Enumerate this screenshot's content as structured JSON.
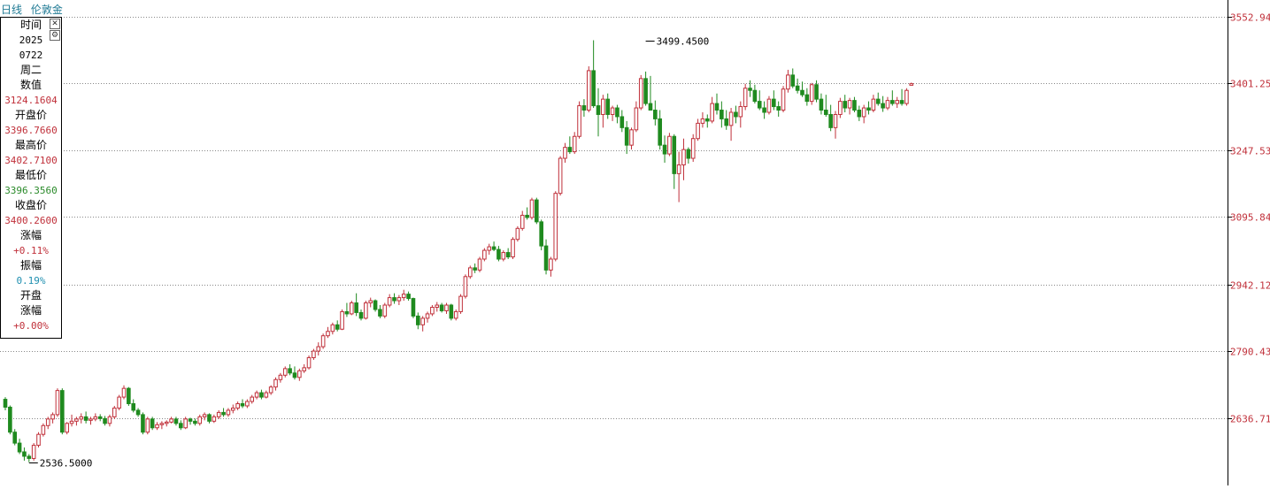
{
  "header": {
    "period": "日线",
    "instrument": "伦敦金"
  },
  "info_panel": {
    "time_label": "时间",
    "year": "2025",
    "date": "0722",
    "weekday": "周二",
    "value_label": "数值",
    "value": "3124.1604",
    "open_label": "开盘价",
    "open": "3396.7660",
    "high_label": "最高价",
    "high": "3402.7100",
    "low_label": "最低价",
    "low": "3396.3560",
    "close_label": "收盘价",
    "close": "3400.2600",
    "change_label": "涨幅",
    "change": "+0.11%",
    "amplitude_label": "振幅",
    "amplitude": "0.19%",
    "open_change_label_1": "开盘",
    "open_change_label_2": "涨幅",
    "open_change": "+0.00%",
    "close_icon": "close-icon",
    "settings_icon": "gear-icon"
  },
  "colors": {
    "up": "#c0303a",
    "down": "#1f8a1f",
    "axis_text": "#c0303a",
    "grid": "#888888",
    "title": "#1f7a94"
  },
  "chart_data": {
    "type": "candlestick",
    "y_ticks": [
      "3552.947",
      "3401.253",
      "3247.537",
      "3095.844",
      "2942.128",
      "2790.434",
      "2636.718"
    ],
    "ylim": [
      2470,
      3580
    ],
    "grid": "horizontal dotted",
    "annotations": [
      {
        "label": "3499.4500",
        "index": 135,
        "price": 3499.45,
        "side": "high"
      },
      {
        "label": "2536.5000",
        "index": 5,
        "price": 2536.5,
        "side": "low"
      }
    ],
    "ohlc": [
      [
        2680,
        2685,
        2655,
        2662
      ],
      [
        2662,
        2666,
        2600,
        2605
      ],
      [
        2605,
        2612,
        2575,
        2580
      ],
      [
        2580,
        2590,
        2555,
        2560
      ],
      [
        2560,
        2570,
        2540,
        2550
      ],
      [
        2550,
        2555,
        2536.5,
        2545
      ],
      [
        2545,
        2580,
        2540,
        2575
      ],
      [
        2575,
        2605,
        2570,
        2600
      ],
      [
        2600,
        2625,
        2595,
        2620
      ],
      [
        2620,
        2640,
        2612,
        2635
      ],
      [
        2635,
        2650,
        2625,
        2645
      ],
      [
        2645,
        2705,
        2640,
        2700
      ],
      [
        2700,
        2705,
        2600,
        2605
      ],
      [
        2605,
        2628,
        2600,
        2625
      ],
      [
        2625,
        2645,
        2618,
        2630
      ],
      [
        2630,
        2640,
        2620,
        2635
      ],
      [
        2635,
        2648,
        2625,
        2640
      ],
      [
        2640,
        2652,
        2625,
        2632
      ],
      [
        2632,
        2640,
        2622,
        2635
      ],
      [
        2635,
        2648,
        2630,
        2640
      ],
      [
        2640,
        2646,
        2630,
        2636
      ],
      [
        2636,
        2642,
        2620,
        2625
      ],
      [
        2625,
        2645,
        2618,
        2640
      ],
      [
        2640,
        2665,
        2635,
        2660
      ],
      [
        2660,
        2690,
        2655,
        2685
      ],
      [
        2685,
        2712,
        2680,
        2705
      ],
      [
        2705,
        2708,
        2665,
        2670
      ],
      [
        2670,
        2680,
        2650,
        2655
      ],
      [
        2655,
        2660,
        2640,
        2645
      ],
      [
        2645,
        2650,
        2600,
        2605
      ],
      [
        2605,
        2640,
        2600,
        2635
      ],
      [
        2635,
        2640,
        2610,
        2615
      ],
      [
        2615,
        2628,
        2610,
        2622
      ],
      [
        2622,
        2630,
        2612,
        2625
      ],
      [
        2625,
        2632,
        2618,
        2628
      ],
      [
        2628,
        2640,
        2625,
        2635
      ],
      [
        2635,
        2640,
        2620,
        2625
      ],
      [
        2625,
        2632,
        2610,
        2615
      ],
      [
        2615,
        2640,
        2612,
        2635
      ],
      [
        2635,
        2638,
        2622,
        2630
      ],
      [
        2630,
        2636,
        2620,
        2625
      ],
      [
        2625,
        2645,
        2620,
        2640
      ],
      [
        2640,
        2650,
        2632,
        2645
      ],
      [
        2645,
        2648,
        2625,
        2630
      ],
      [
        2630,
        2645,
        2626,
        2640
      ],
      [
        2640,
        2655,
        2635,
        2650
      ],
      [
        2650,
        2660,
        2640,
        2645
      ],
      [
        2645,
        2660,
        2640,
        2655
      ],
      [
        2655,
        2668,
        2648,
        2660
      ],
      [
        2660,
        2675,
        2655,
        2670
      ],
      [
        2670,
        2680,
        2660,
        2665
      ],
      [
        2665,
        2680,
        2660,
        2675
      ],
      [
        2675,
        2690,
        2670,
        2685
      ],
      [
        2685,
        2700,
        2680,
        2695
      ],
      [
        2695,
        2702,
        2680,
        2685
      ],
      [
        2685,
        2700,
        2682,
        2695
      ],
      [
        2695,
        2712,
        2690,
        2708
      ],
      [
        2708,
        2730,
        2700,
        2725
      ],
      [
        2725,
        2740,
        2718,
        2735
      ],
      [
        2735,
        2755,
        2730,
        2750
      ],
      [
        2750,
        2760,
        2735,
        2740
      ],
      [
        2740,
        2755,
        2725,
        2730
      ],
      [
        2730,
        2750,
        2722,
        2745
      ],
      [
        2745,
        2760,
        2740,
        2752
      ],
      [
        2752,
        2780,
        2748,
        2775
      ],
      [
        2775,
        2795,
        2770,
        2790
      ],
      [
        2790,
        2810,
        2780,
        2800
      ],
      [
        2800,
        2830,
        2795,
        2825
      ],
      [
        2825,
        2845,
        2820,
        2835
      ],
      [
        2835,
        2855,
        2828,
        2850
      ],
      [
        2850,
        2860,
        2835,
        2840
      ],
      [
        2840,
        2885,
        2838,
        2880
      ],
      [
        2880,
        2900,
        2868,
        2875
      ],
      [
        2875,
        2905,
        2872,
        2900
      ],
      [
        2900,
        2922,
        2870,
        2878
      ],
      [
        2878,
        2885,
        2860,
        2865
      ],
      [
        2865,
        2905,
        2862,
        2900
      ],
      [
        2900,
        2912,
        2890,
        2905
      ],
      [
        2905,
        2908,
        2880,
        2885
      ],
      [
        2885,
        2895,
        2865,
        2870
      ],
      [
        2870,
        2900,
        2865,
        2895
      ],
      [
        2895,
        2920,
        2890,
        2912
      ],
      [
        2912,
        2922,
        2898,
        2905
      ],
      [
        2905,
        2918,
        2895,
        2912
      ],
      [
        2912,
        2930,
        2905,
        2920
      ],
      [
        2920,
        2926,
        2905,
        2910
      ],
      [
        2910,
        2912,
        2865,
        2870
      ],
      [
        2870,
        2878,
        2840,
        2850
      ],
      [
        2850,
        2870,
        2835,
        2865
      ],
      [
        2865,
        2880,
        2855,
        2875
      ],
      [
        2875,
        2895,
        2870,
        2890
      ],
      [
        2890,
        2902,
        2880,
        2895
      ],
      [
        2895,
        2900,
        2878,
        2882
      ],
      [
        2882,
        2900,
        2875,
        2895
      ],
      [
        2895,
        2898,
        2860,
        2865
      ],
      [
        2865,
        2885,
        2860,
        2880
      ],
      [
        2880,
        2920,
        2875,
        2915
      ],
      [
        2915,
        2965,
        2910,
        2960
      ],
      [
        2960,
        2985,
        2955,
        2980
      ],
      [
        2980,
        2990,
        2968,
        2975
      ],
      [
        2975,
        3005,
        2970,
        3000
      ],
      [
        3000,
        3025,
        2995,
        3020
      ],
      [
        3020,
        3035,
        3010,
        3028
      ],
      [
        3028,
        3040,
        3018,
        3022
      ],
      [
        3022,
        3030,
        2995,
        3000
      ],
      [
        3000,
        3020,
        2995,
        3015
      ],
      [
        3015,
        3025,
        3000,
        3005
      ],
      [
        3005,
        3050,
        3000,
        3045
      ],
      [
        3045,
        3075,
        3040,
        3070
      ],
      [
        3070,
        3110,
        3065,
        3100
      ],
      [
        3100,
        3118,
        3090,
        3095
      ],
      [
        3095,
        3140,
        3090,
        3135
      ],
      [
        3135,
        3140,
        3080,
        3085
      ],
      [
        3085,
        3090,
        3020,
        3030
      ],
      [
        3030,
        3045,
        2965,
        2975
      ],
      [
        2975,
        3005,
        2960,
        3000
      ],
      [
        3000,
        3155,
        2995,
        3150
      ],
      [
        3150,
        3235,
        3145,
        3230
      ],
      [
        3230,
        3265,
        3220,
        3255
      ],
      [
        3255,
        3280,
        3240,
        3245
      ],
      [
        3245,
        3290,
        3240,
        3280
      ],
      [
        3280,
        3360,
        3275,
        3350
      ],
      [
        3350,
        3365,
        3325,
        3340
      ],
      [
        3340,
        3440,
        3335,
        3430
      ],
      [
        3430,
        3499.45,
        3345,
        3350
      ],
      [
        3350,
        3390,
        3280,
        3330
      ],
      [
        3330,
        3375,
        3300,
        3365
      ],
      [
        3365,
        3378,
        3320,
        3330
      ],
      [
        3330,
        3350,
        3315,
        3345
      ],
      [
        3345,
        3352,
        3310,
        3325
      ],
      [
        3325,
        3340,
        3290,
        3300
      ],
      [
        3300,
        3315,
        3240,
        3260
      ],
      [
        3260,
        3300,
        3250,
        3295
      ],
      [
        3295,
        3360,
        3290,
        3345
      ],
      [
        3345,
        3420,
        3340,
        3412
      ],
      [
        3412,
        3428,
        3350,
        3355
      ],
      [
        3355,
        3418,
        3340,
        3340
      ],
      [
        3340,
        3362,
        3305,
        3320
      ],
      [
        3320,
        3340,
        3250,
        3260
      ],
      [
        3260,
        3282,
        3220,
        3240
      ],
      [
        3240,
        3288,
        3235,
        3280
      ],
      [
        3280,
        3285,
        3160,
        3195
      ],
      [
        3195,
        3245,
        3130,
        3215
      ],
      [
        3215,
        3275,
        3180,
        3250
      ],
      [
        3250,
        3255,
        3218,
        3230
      ],
      [
        3230,
        3285,
        3222,
        3275
      ],
      [
        3275,
        3320,
        3270,
        3310
      ],
      [
        3310,
        3335,
        3300,
        3320
      ],
      [
        3320,
        3330,
        3300,
        3315
      ],
      [
        3315,
        3370,
        3310,
        3355
      ],
      [
        3355,
        3378,
        3330,
        3340
      ],
      [
        3340,
        3360,
        3300,
        3320
      ],
      [
        3320,
        3340,
        3295,
        3305
      ],
      [
        3305,
        3345,
        3270,
        3335
      ],
      [
        3335,
        3350,
        3310,
        3325
      ],
      [
        3325,
        3360,
        3300,
        3348
      ],
      [
        3348,
        3400,
        3340,
        3390
      ],
      [
        3390,
        3408,
        3370,
        3385
      ],
      [
        3385,
        3398,
        3355,
        3360
      ],
      [
        3360,
        3385,
        3340,
        3345
      ],
      [
        3345,
        3360,
        3320,
        3335
      ],
      [
        3335,
        3372,
        3330,
        3365
      ],
      [
        3365,
        3385,
        3340,
        3348
      ],
      [
        3348,
        3360,
        3325,
        3340
      ],
      [
        3340,
        3395,
        3335,
        3388
      ],
      [
        3388,
        3432,
        3380,
        3420
      ],
      [
        3420,
        3435,
        3390,
        3395
      ],
      [
        3395,
        3412,
        3378,
        3385
      ],
      [
        3385,
        3405,
        3370,
        3375
      ],
      [
        3375,
        3390,
        3350,
        3360
      ],
      [
        3360,
        3402,
        3352,
        3398
      ],
      [
        3398,
        3408,
        3358,
        3365
      ],
      [
        3365,
        3378,
        3330,
        3340
      ],
      [
        3340,
        3375,
        3325,
        3330
      ],
      [
        3330,
        3352,
        3292,
        3300
      ],
      [
        3300,
        3338,
        3275,
        3330
      ],
      [
        3330,
        3368,
        3322,
        3360
      ],
      [
        3360,
        3375,
        3335,
        3345
      ],
      [
        3345,
        3368,
        3330,
        3362
      ],
      [
        3362,
        3370,
        3335,
        3340
      ],
      [
        3340,
        3350,
        3315,
        3325
      ],
      [
        3325,
        3352,
        3310,
        3345
      ],
      [
        3345,
        3360,
        3330,
        3340
      ],
      [
        3340,
        3375,
        3335,
        3365
      ],
      [
        3365,
        3380,
        3350,
        3355
      ],
      [
        3355,
        3372,
        3336,
        3345
      ],
      [
        3345,
        3370,
        3340,
        3362
      ],
      [
        3362,
        3385,
        3350,
        3355
      ],
      [
        3355,
        3370,
        3345,
        3362
      ],
      [
        3362,
        3388,
        3350,
        3355
      ],
      [
        3355,
        3390,
        3350,
        3385
      ],
      [
        3396.766,
        3402.71,
        3396.356,
        3400.26
      ]
    ]
  }
}
